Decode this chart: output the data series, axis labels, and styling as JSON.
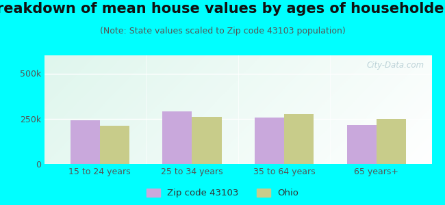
{
  "title": "Breakdown of mean house values by ages of householders",
  "subtitle": "(Note: State values scaled to Zip code 43103 population)",
  "categories": [
    "15 to 24 years",
    "25 to 34 years",
    "35 to 64 years",
    "65 years+"
  ],
  "zip_values": [
    240000,
    290000,
    255000,
    215000
  ],
  "ohio_values": [
    210000,
    260000,
    275000,
    250000
  ],
  "zip_color": "#c9a8dc",
  "ohio_color": "#c8cc8a",
  "bar_width": 0.32,
  "ylim": [
    0,
    600000
  ],
  "yticks": [
    0,
    250000,
    500000
  ],
  "ytick_labels": [
    "0",
    "250k",
    "500k"
  ],
  "legend_zip": "Zip code 43103",
  "legend_ohio": "Ohio",
  "bg_outer": "#00ffff",
  "title_fontsize": 15,
  "subtitle_fontsize": 9,
  "tick_fontsize": 9,
  "watermark": "City-Data.com"
}
